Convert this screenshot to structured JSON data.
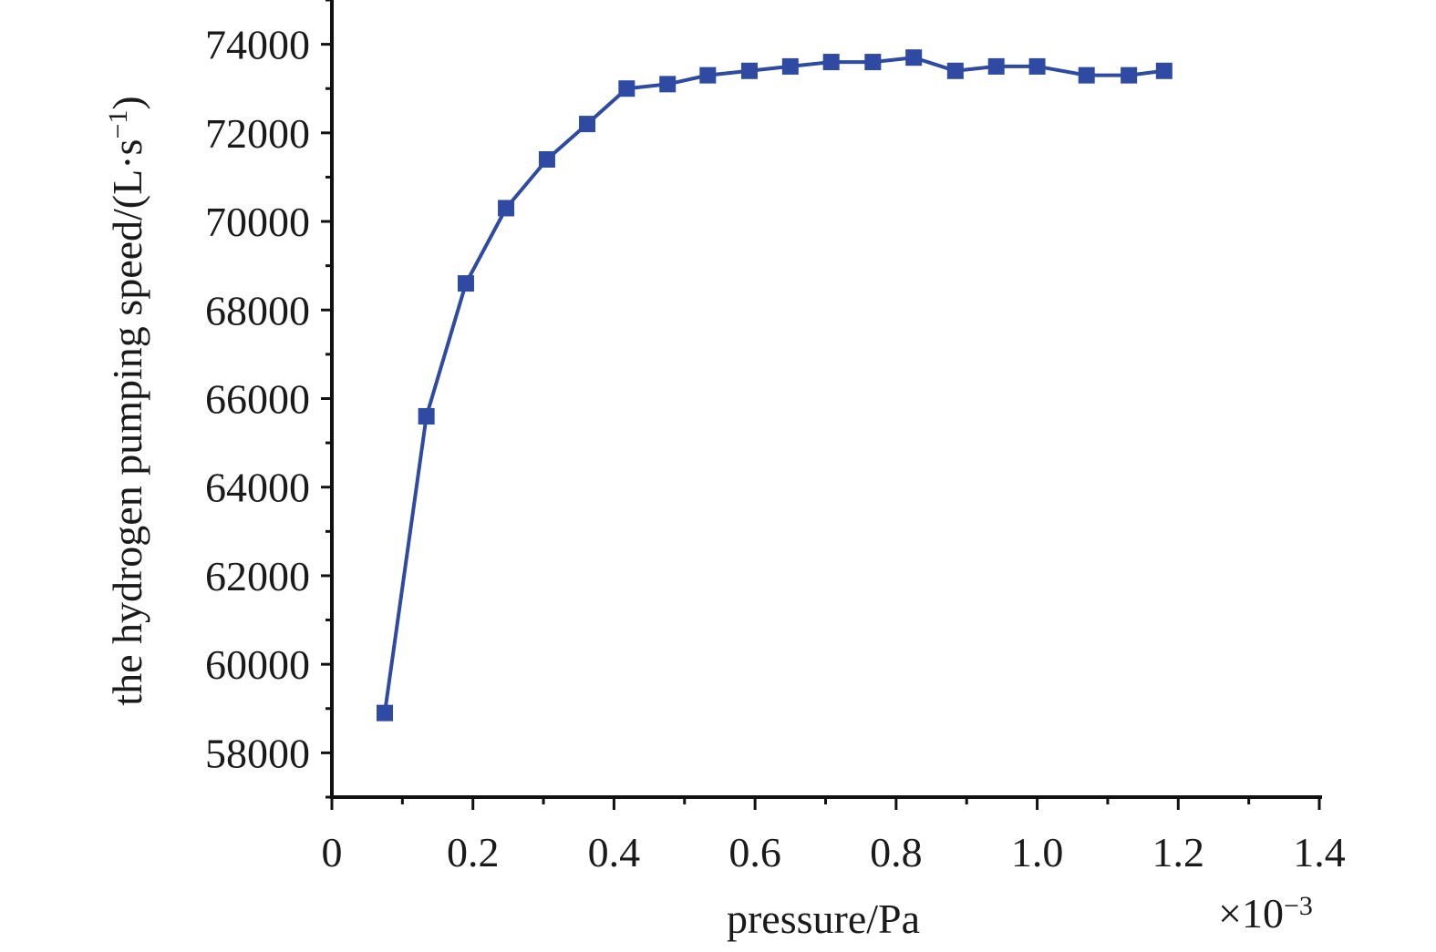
{
  "chart_data": {
    "type": "line",
    "xlabel": "pressure/Pa",
    "x_multiplier": "×10",
    "x_multiplier_exp": "−3",
    "ylabel_main": "the hydrogen pumping speed/(L·s",
    "ylabel_exp": "−1",
    "ylabel_close": ")",
    "xlim": [
      0,
      1.4
    ],
    "ylim": [
      57000,
      75000
    ],
    "x_ticks": [
      0,
      0.2,
      0.4,
      0.6,
      0.8,
      1.0,
      1.2,
      1.4
    ],
    "x_tick_labels": [
      "0",
      "0.2",
      "0.4",
      "0.6",
      "0.8",
      "1.0",
      "1.2",
      "1.4"
    ],
    "y_ticks": [
      58000,
      60000,
      62000,
      64000,
      66000,
      68000,
      70000,
      72000,
      74000
    ],
    "y_tick_labels": [
      "58000",
      "60000",
      "62000",
      "64000",
      "66000",
      "68000",
      "70000",
      "72000",
      "74000"
    ],
    "grid": false,
    "color": "#2e4aa3",
    "marker": "square",
    "series": [
      {
        "x": [
          0.075,
          0.134,
          0.19,
          0.247,
          0.305,
          0.362,
          0.418,
          0.476,
          0.533,
          0.592,
          0.65,
          0.708,
          0.767,
          0.825,
          0.884,
          0.942,
          1.0,
          1.07,
          1.13,
          1.18
        ],
        "values": [
          58900,
          65600,
          68600,
          70300,
          71400,
          72200,
          73000,
          73100,
          73300,
          73400,
          73500,
          73600,
          73600,
          73700,
          73400,
          73500,
          73500,
          73300,
          73300,
          73400
        ]
      }
    ]
  }
}
